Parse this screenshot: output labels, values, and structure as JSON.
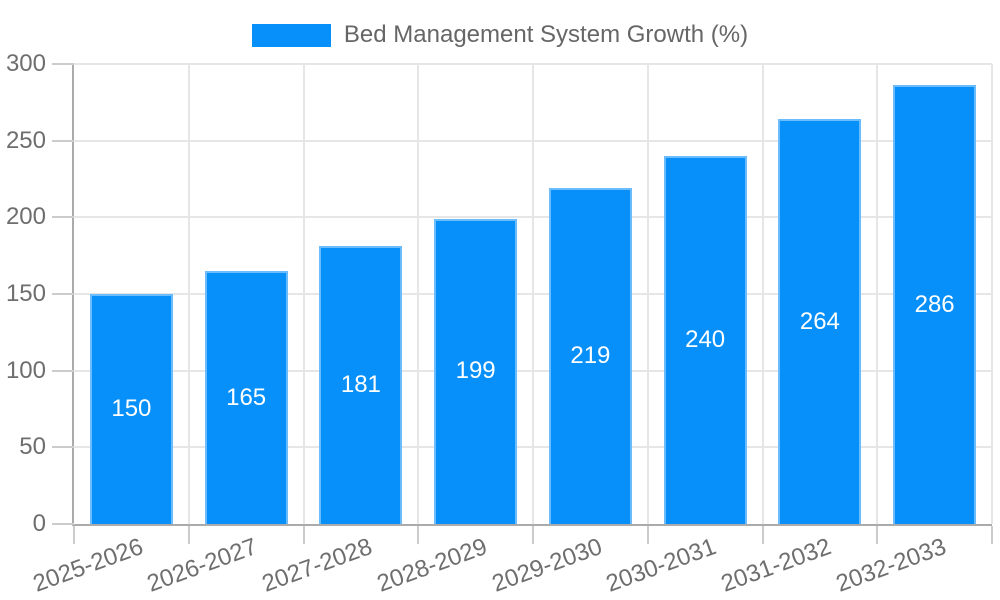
{
  "legend": {
    "label": "Bed Management System Growth (%)"
  },
  "chart_data": {
    "type": "bar",
    "title": "Bed Management System Growth (%)",
    "categories": [
      "2025-2026",
      "2026-2027",
      "2027-2028",
      "2028-2029",
      "2029-2030",
      "2030-2031",
      "2031-2032",
      "2032-2033"
    ],
    "values": [
      150,
      165,
      181,
      199,
      219,
      240,
      264,
      286
    ],
    "xlabel": "",
    "ylabel": "",
    "ylim": [
      0,
      300
    ],
    "yticks": [
      0,
      50,
      100,
      150,
      200,
      250,
      300
    ],
    "grid": true,
    "legend_position": "top",
    "bar_labels_inside": true,
    "colors": {
      "bar": "#0890FA",
      "bar_border": "rgba(255,255,255,0.4)",
      "value_label": "#ffffff",
      "gridline": "#e6e6e6",
      "axis_line": "#ababab",
      "tick_mark": "#cccccc",
      "tick_label": "#6e6e6e",
      "legend_text": "#666666"
    }
  }
}
